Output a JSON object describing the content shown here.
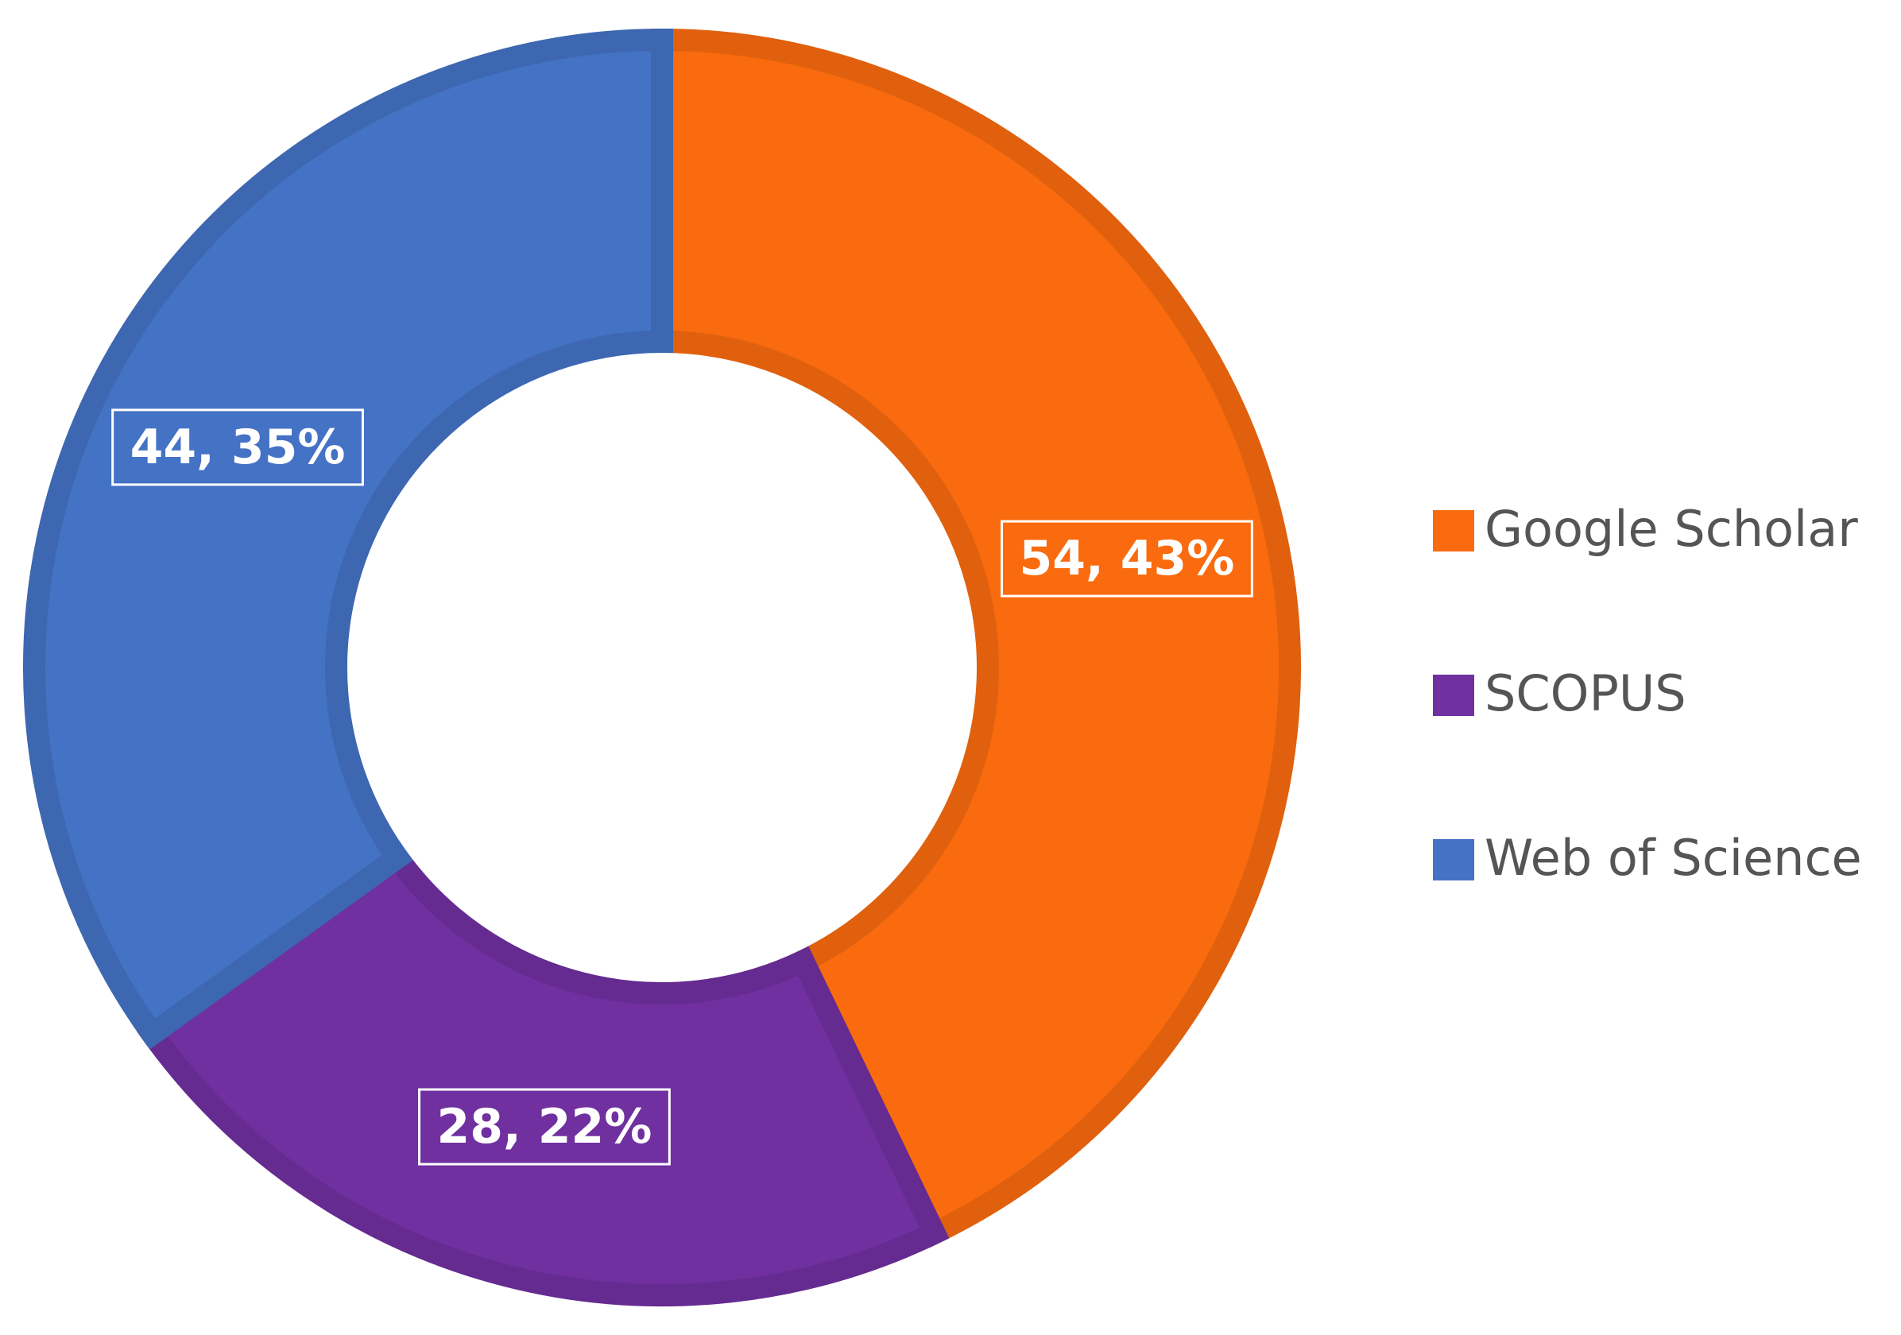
{
  "chart_data": {
    "type": "donut",
    "categories": [
      "Google Scholar",
      "SCOPUS",
      "Web of Science"
    ],
    "values": [
      54,
      28,
      44
    ],
    "value_labels": [
      "54, 43%",
      "28, 22%",
      "44, 35%"
    ],
    "colors": [
      "#f96b0e",
      "#7030a0",
      "#4472c4"
    ],
    "legend": "right"
  }
}
